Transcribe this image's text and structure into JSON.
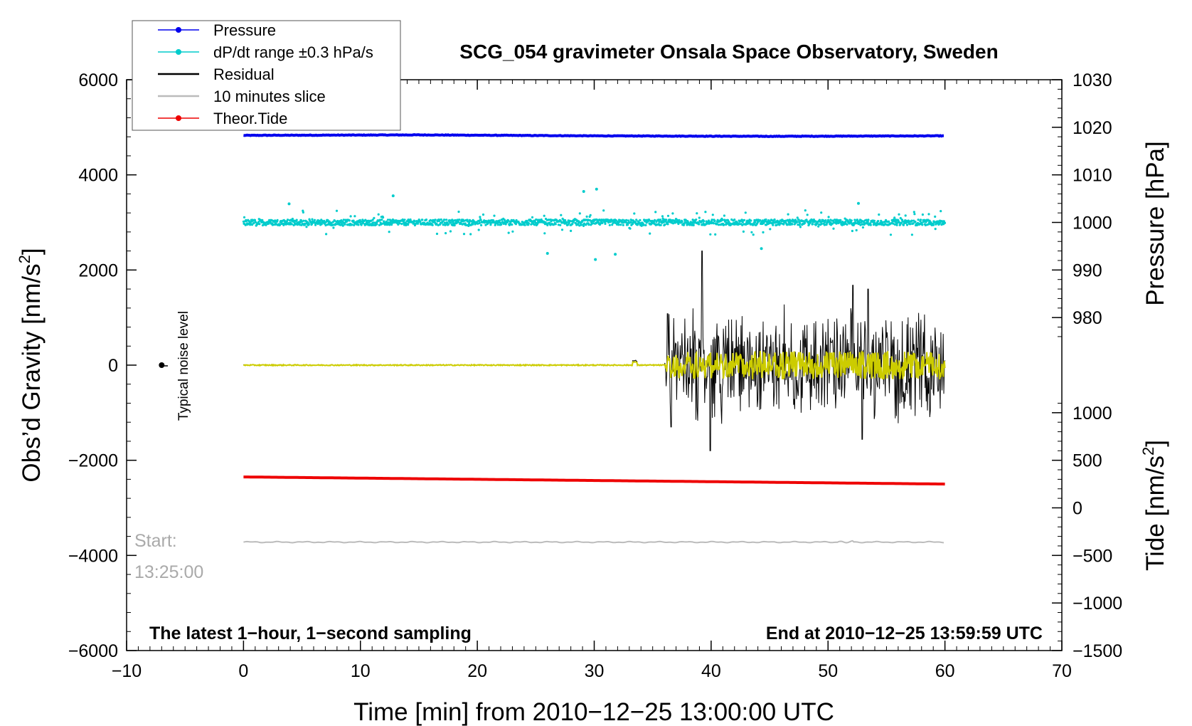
{
  "chart_data": {
    "type": "line",
    "title": "SCG_054 gravimeter Onsala Space Observatory, Sweden",
    "xlabel": "Time [min] from 2010−12−25 13:00:00 UTC",
    "ylabel_left": "Obs’d Gravity [nm/s",
    "ylabel_left_sup": "2",
    "ylabel_left_tail": "]",
    "ylabel_right_top": "Pressure [hPa]",
    "ylabel_right_bottom": "Tide [nm/s",
    "ylabel_right_bottom_sup": "2",
    "ylabel_right_bottom_tail": "]",
    "xlim": [
      -10,
      70
    ],
    "ylim": [
      -6000,
      6000
    ],
    "x_ticks": [
      -10,
      0,
      10,
      20,
      30,
      40,
      50,
      60,
      70
    ],
    "x_tick_labels": [
      "−10",
      "0",
      "10",
      "20",
      "30",
      "40",
      "50",
      "60",
      "70"
    ],
    "y_ticks": [
      -6000,
      -4000,
      -2000,
      0,
      2000,
      4000,
      6000
    ],
    "y_tick_labels": [
      "−6000",
      "−4000",
      "−2000",
      "0",
      "2000",
      "4000",
      "6000"
    ],
    "pressure_axis": {
      "ticks": [
        980,
        990,
        1000,
        1010,
        1020,
        1030
      ],
      "labels": [
        "980",
        "990",
        "1000",
        "1010",
        "1020",
        "1030"
      ],
      "ref_value": 1000,
      "ref_gravity": 3000,
      "scale": 100
    },
    "tide_axis": {
      "ticks": [
        -1500,
        -1000,
        -500,
        0,
        500,
        1000
      ],
      "labels": [
        "−1500",
        "−1000",
        "−500",
        "0",
        "500",
        "1000"
      ],
      "ref_value": 0,
      "ref_gravity": -3000,
      "scale": 2
    },
    "legend": {
      "position": "top-left",
      "entries": [
        {
          "label": "Pressure",
          "color": "#0000ee",
          "marker": true
        },
        {
          "label": "dP/dt range ±0.3 hPa/s",
          "color": "#00cccc",
          "marker": true
        },
        {
          "label": "Residual",
          "color": "#000000",
          "marker": false
        },
        {
          "label": "10 minutes slice",
          "color": "#bbbbbb",
          "marker": false
        },
        {
          "label": "Theor.Tide",
          "color": "#ee0000",
          "marker": true
        }
      ]
    },
    "series": [
      {
        "name": "Pressure",
        "color": "#0000ee",
        "x_range": [
          0,
          60
        ],
        "y": [
          4830,
          4840,
          4820,
          4810,
          4820
        ]
      },
      {
        "name": "dP/dt range ±0.3 hPa/s",
        "color": "#00cccc",
        "x_range": [
          0,
          60
        ],
        "center": 3000,
        "spread": 120,
        "outliers": [
          {
            "x": 12.8,
            "y": 3560
          },
          {
            "x": 30.2,
            "y": 3700
          },
          {
            "x": 29.1,
            "y": 3650
          },
          {
            "x": 30.1,
            "y": 2220
          },
          {
            "x": 26.0,
            "y": 2350
          },
          {
            "x": 31.8,
            "y": 2330
          },
          {
            "x": 3.9,
            "y": 3390
          },
          {
            "x": 52.6,
            "y": 3400
          },
          {
            "x": 44.3,
            "y": 2450
          }
        ]
      },
      {
        "name": "Residual",
        "color": "#000000",
        "x_range": [
          0,
          60
        ],
        "quiet_until": 36,
        "quiet_level": 0,
        "active_amplitude": 1300,
        "peaks": [
          {
            "x": 39.2,
            "y": 2400
          },
          {
            "x": 39.9,
            "y": -1800
          },
          {
            "x": 36.3,
            "y": 1080
          },
          {
            "x": 36.6,
            "y": -1300
          },
          {
            "x": 52.1,
            "y": 1680
          },
          {
            "x": 53.4,
            "y": 1600
          },
          {
            "x": 52.9,
            "y": -1560
          }
        ]
      },
      {
        "name": "Residual (smoothed)",
        "color": "#cccc00",
        "x_range": [
          0,
          60
        ],
        "quiet_until": 36,
        "active_amplitude": 300
      },
      {
        "name": "10 minutes slice",
        "color": "#bbbbbb",
        "x_range": [
          0,
          60
        ],
        "level": -3720
      },
      {
        "name": "Theor.Tide",
        "color": "#ee0000",
        "x": [
          0,
          60
        ],
        "y": [
          -2350,
          -2500
        ]
      }
    ],
    "noise_marker": {
      "x": -7,
      "y": 0,
      "label": "Typical noise level"
    },
    "annotations": {
      "start_label": "Start:",
      "start_time": "13:25:00",
      "bottom_left": "The latest 1−hour, 1−second sampling",
      "bottom_right": "End at 2010−12−25 13:59:59 UTC"
    }
  }
}
